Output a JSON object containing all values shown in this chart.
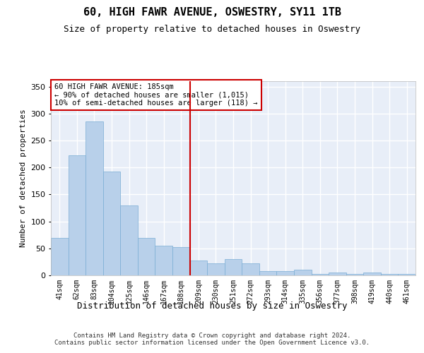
{
  "title": "60, HIGH FAWR AVENUE, OSWESTRY, SY11 1TB",
  "subtitle": "Size of property relative to detached houses in Oswestry",
  "xlabel": "Distribution of detached houses by size in Oswestry",
  "ylabel": "Number of detached properties",
  "footer_line1": "Contains HM Land Registry data © Crown copyright and database right 2024.",
  "footer_line2": "Contains public sector information licensed under the Open Government Licence v3.0.",
  "annotation_line1": "60 HIGH FAWR AVENUE: 185sqm",
  "annotation_line2": "← 90% of detached houses are smaller (1,015)",
  "annotation_line3": "10% of semi-detached houses are larger (118) →",
  "bar_color": "#b8d0ea",
  "bar_edge_color": "#7aadd4",
  "vline_color": "#cc0000",
  "vline_x": 7.5,
  "background_color": "#e8eef8",
  "grid_color": "#ffffff",
  "categories": [
    "41sqm",
    "62sqm",
    "83sqm",
    "104sqm",
    "125sqm",
    "146sqm",
    "167sqm",
    "188sqm",
    "209sqm",
    "230sqm",
    "251sqm",
    "272sqm",
    "293sqm",
    "314sqm",
    "335sqm",
    "356sqm",
    "377sqm",
    "398sqm",
    "419sqm",
    "440sqm",
    "461sqm"
  ],
  "values": [
    70,
    222,
    285,
    192,
    130,
    70,
    55,
    52,
    28,
    22,
    30,
    22,
    8,
    8,
    10,
    3,
    5,
    3,
    5,
    3,
    2
  ],
  "ylim": [
    0,
    360
  ],
  "yticks": [
    0,
    50,
    100,
    150,
    200,
    250,
    300,
    350
  ],
  "title_fontsize": 11,
  "subtitle_fontsize": 9,
  "ylabel_fontsize": 8,
  "tick_fontsize": 7,
  "annotation_fontsize": 7.5,
  "footer_fontsize": 6.5,
  "xlabel_fontsize": 9
}
